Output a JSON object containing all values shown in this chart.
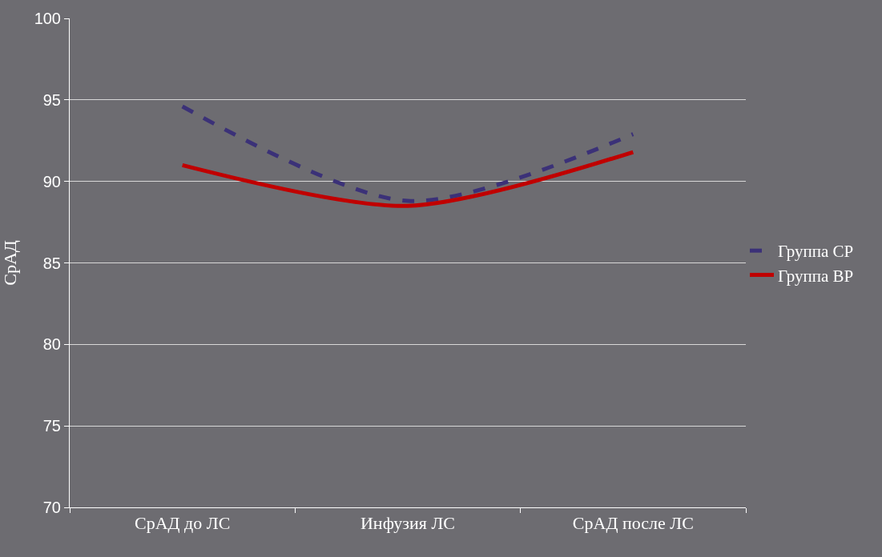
{
  "chart_data": {
    "type": "line",
    "ylabel": "СрАД",
    "categories": [
      "СрАД до ЛС",
      "Инфузия ЛС",
      "СрАД после ЛС"
    ],
    "series": [
      {
        "name": "Группа СР",
        "color": "#3b3178",
        "values": [
          94.6,
          88.8,
          92.9
        ],
        "line_style": "dashed"
      },
      {
        "name": "Группа ВР",
        "color": "#c00000",
        "values": [
          91.0,
          88.5,
          91.8
        ],
        "line_style": "solid"
      }
    ],
    "ylim": [
      70,
      100
    ],
    "yticks": [
      70,
      75,
      80,
      85,
      90,
      95,
      100
    ],
    "grid": "y",
    "legend": "right",
    "marker": "none"
  }
}
